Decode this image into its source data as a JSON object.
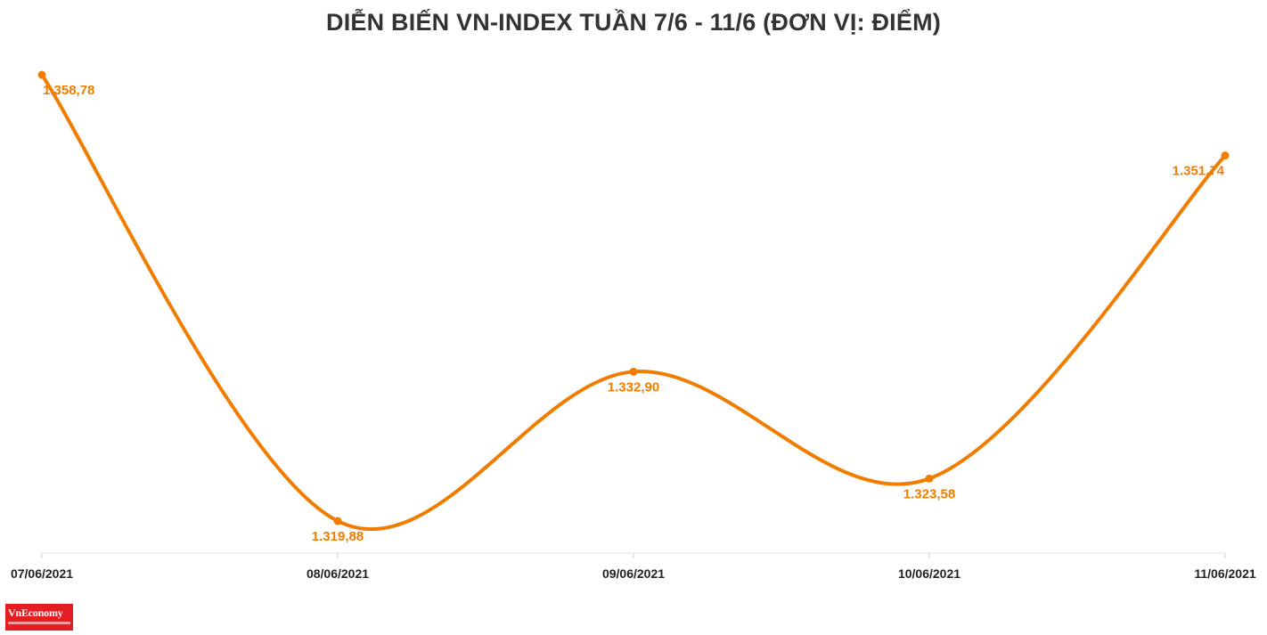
{
  "chart_data": {
    "type": "line",
    "title": "DIỄN BIẾN VN-INDEX TUẦN 7/6 - 11/6 (ĐƠN VỊ: ĐIỂM)",
    "categories": [
      "07/06/2021",
      "08/06/2021",
      "09/06/2021",
      "10/06/2021",
      "11/06/2021"
    ],
    "series": [
      {
        "values": [
          1358.78,
          1319.88,
          1332.9,
          1323.58,
          1351.74
        ],
        "labels": [
          "1.358,78",
          "1.319,88",
          "1.332,90",
          "1.323,58",
          "1.351,74"
        ],
        "color": "#f07d00"
      }
    ],
    "xlabel": "",
    "ylabel": "",
    "grid": false,
    "legend": "none"
  },
  "branding": {
    "logo_text": "VnEconomy",
    "logo_color": "#e41d22"
  }
}
